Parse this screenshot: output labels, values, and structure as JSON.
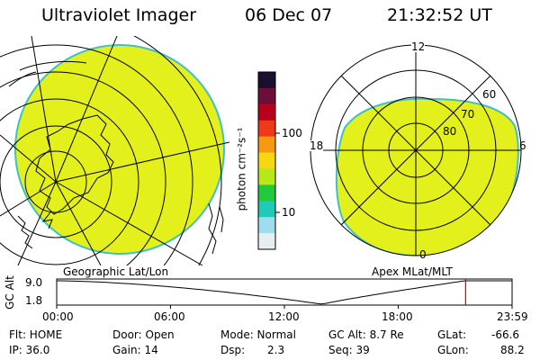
{
  "header": {
    "instrument": "Ultraviolet Imager",
    "date": "06 Dec 07",
    "time": "21:32:52 UT"
  },
  "colors": {
    "emission_fill": "#e4f01c",
    "emission_edge": "#3ec0c8",
    "timeline_marker": "#cc0000"
  },
  "colorbar": {
    "unit_label": "photon cm⁻²s⁻¹",
    "tick_100": "100",
    "tick_10": "10",
    "colors_top_to_bottom": [
      "#1a0f2e",
      "#6b0e3c",
      "#b8001c",
      "#ee3a18",
      "#f59a10",
      "#f3d812",
      "#b9e81a",
      "#22c93c",
      "#22c8b8",
      "#9fdcec",
      "#e6eef2"
    ]
  },
  "left_map": {
    "caption": "Geographic Lat/Lon"
  },
  "right_map": {
    "caption": "Apex MLat/MLT",
    "mlt_12": "12",
    "mlt_18": "18",
    "mlt_6": "6",
    "mlt_0": "0",
    "lat_60": "60",
    "lat_70": "70",
    "lat_80": "80"
  },
  "timeline": {
    "axis_label": "GC Alt",
    "y_top": "9.0",
    "y_bottom": "1.8",
    "x_ticks": [
      "00:00",
      "06:00",
      "12:00",
      "18:00",
      "23:59"
    ],
    "current_time_hours": 21.55
  },
  "info": {
    "flt": "Flt: HOME",
    "ip": "IP: 36.0",
    "door": "Door: Open",
    "gain": "Gain: 14",
    "mode": "Mode: Normal",
    "dsp_label": "Dsp:",
    "dsp_value": "2.3",
    "gc_alt": "GC Alt: 8.7 Re",
    "seq": "Seq: 39",
    "glat_label": "GLat:",
    "glat_value": "-66.6",
    "glon_label": "GLon:",
    "glon_value": "88.2"
  }
}
